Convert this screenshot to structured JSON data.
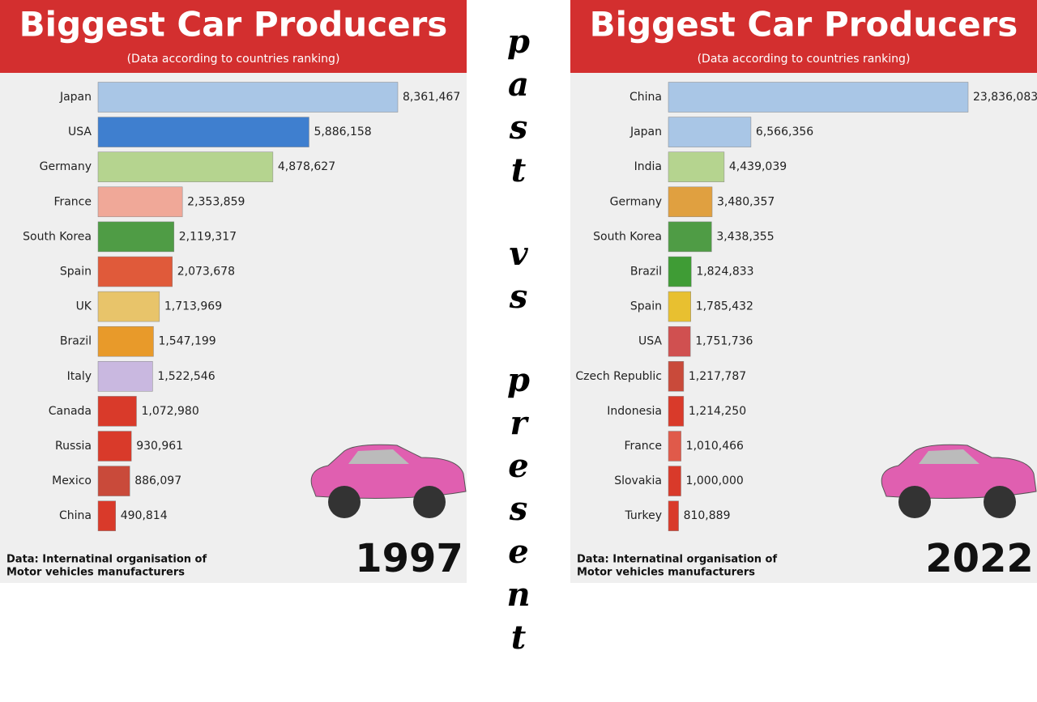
{
  "chart_data": [
    {
      "type": "bar",
      "title": "Biggest Car Producers",
      "subtitle": "(Data according to countries ranking)",
      "categories": [
        "Japan",
        "USA",
        "Germany",
        "France",
        "South Korea",
        "Spain",
        "UK",
        "Brazil",
        "Italy",
        "Canada",
        "Russia",
        "Mexico",
        "China"
      ],
      "values": [
        8361467,
        5886158,
        4878627,
        2353859,
        2119317,
        2073678,
        1713969,
        1547199,
        1522546,
        1072980,
        930961,
        886097,
        490814
      ],
      "value_labels": [
        "8,361,467",
        "5,886,158",
        "4,878,627",
        "2,353,859",
        "2,119,317",
        "2,073,678",
        "1,713,969",
        "1,547,199",
        "1,522,546",
        "1,072,980",
        "930,961",
        "886,097",
        "490,814"
      ],
      "colors": [
        "#a9c6e6",
        "#3f7fcf",
        "#b5d48f",
        "#f0a898",
        "#4f9c45",
        "#e05a3a",
        "#e8c46a",
        "#e89a2a",
        "#c9b8e0",
        "#d93a2a",
        "#d93a2a",
        "#c94a3a",
        "#d93a2a"
      ],
      "source": [
        "Data: Internatinal organisation of",
        "Motor vehicles manufacturers"
      ],
      "year": "1997"
    },
    {
      "type": "bar",
      "title": "Biggest Car Producers",
      "subtitle": "(Data according to countries ranking)",
      "categories": [
        "China",
        "Japan",
        "India",
        "Germany",
        "South Korea",
        "Brazil",
        "Spain",
        "USA",
        "Czech Republic",
        "Indonesia",
        "France",
        "Slovakia",
        "Turkey"
      ],
      "values": [
        23836083,
        6566356,
        4439039,
        3480357,
        3438355,
        1824833,
        1785432,
        1751736,
        1217787,
        1214250,
        1010466,
        1000000,
        810889
      ],
      "value_labels": [
        "23,836,083",
        "6,566,356",
        "4,439,039",
        "3,480,357",
        "3,438,355",
        "1,824,833",
        "1,785,432",
        "1,751,736",
        "1,217,787",
        "1,214,250",
        "1,010,466",
        "1,000,000",
        "810,889"
      ],
      "colors": [
        "#a9c6e6",
        "#a9c6e6",
        "#b5d48f",
        "#e0a040",
        "#4f9c45",
        "#3f9c35",
        "#e8c030",
        "#d05050",
        "#c94a3a",
        "#d93a2a",
        "#e05a4a",
        "#d93a2a",
        "#d93a2a"
      ],
      "source": [
        "Data: Internatinal organisation of",
        "Motor vehicles manufacturers"
      ],
      "year": "2022"
    }
  ],
  "center_words": [
    "past",
    "vs",
    "present"
  ]
}
